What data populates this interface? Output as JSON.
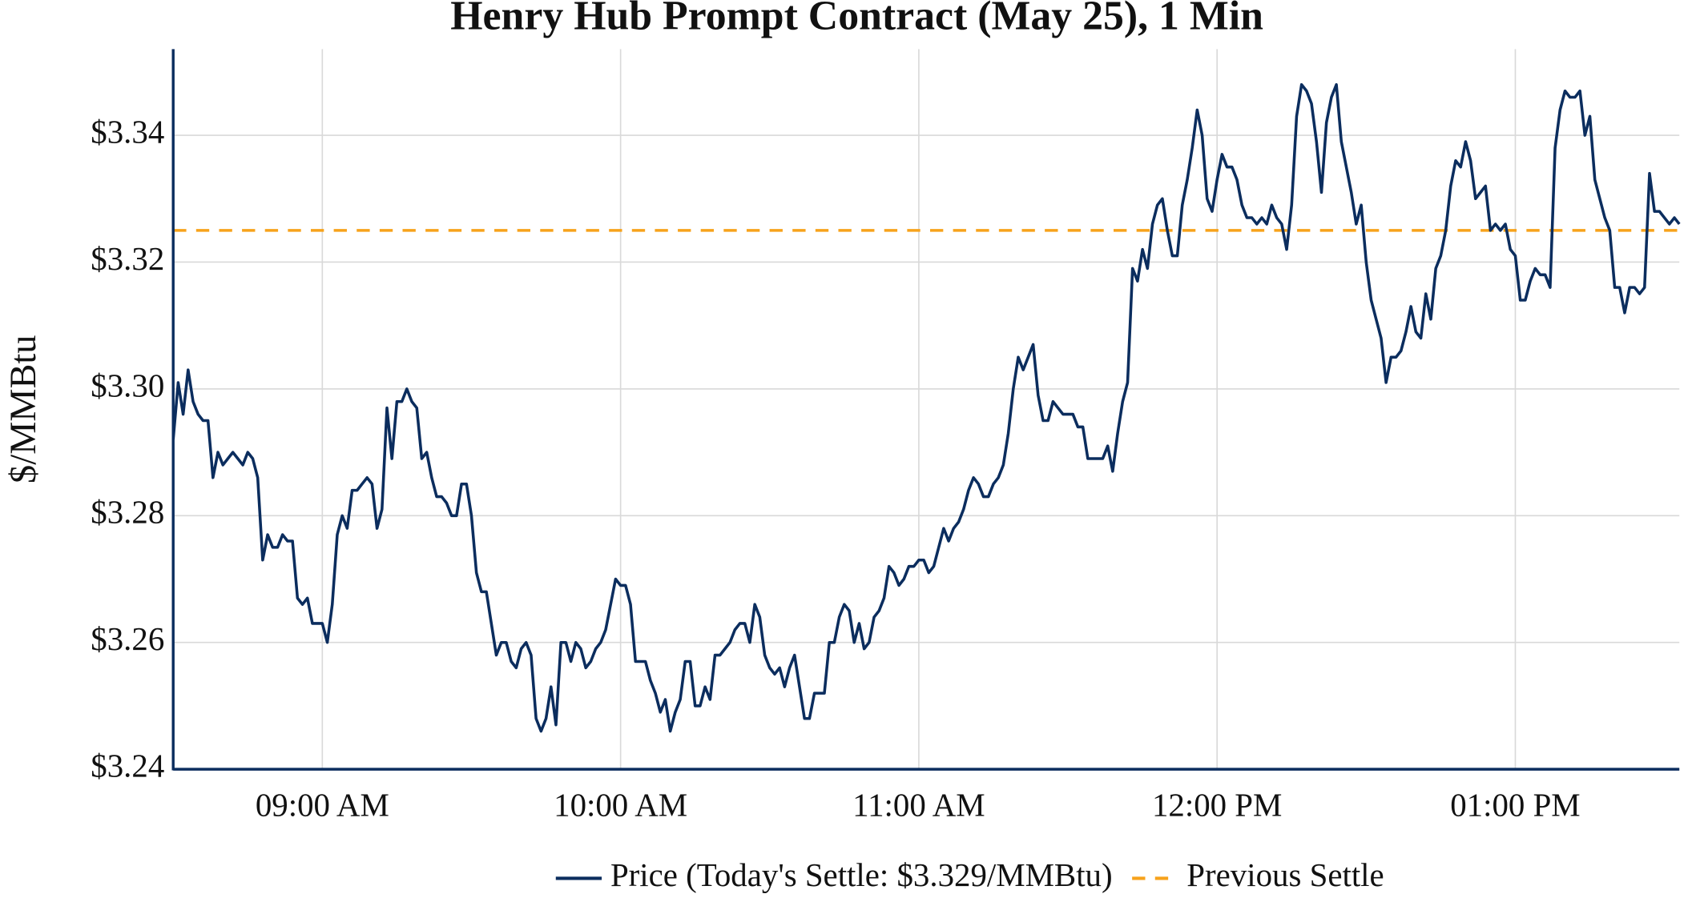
{
  "chart_data": {
    "type": "line",
    "title": "Henry Hub Prompt Contract (May 25), 1 Min",
    "y_label": "$/MMBtu",
    "x": [
      "08:30 AM",
      "08:31 AM",
      "08:32 AM",
      "08:33 AM",
      "08:34 AM",
      "08:35 AM",
      "08:36 AM",
      "08:37 AM",
      "08:38 AM",
      "08:39 AM",
      "08:40 AM",
      "08:41 AM",
      "08:42 AM",
      "08:43 AM",
      "08:44 AM",
      "08:45 AM",
      "08:46 AM",
      "08:47 AM",
      "08:48 AM",
      "08:49 AM",
      "08:50 AM",
      "08:51 AM",
      "08:52 AM",
      "08:53 AM",
      "08:54 AM",
      "08:55 AM",
      "08:56 AM",
      "08:57 AM",
      "08:58 AM",
      "08:59 AM",
      "09:00 AM",
      "09:01 AM",
      "09:02 AM",
      "09:03 AM",
      "09:04 AM",
      "09:05 AM",
      "09:06 AM",
      "09:07 AM",
      "09:08 AM",
      "09:09 AM",
      "09:10 AM",
      "09:11 AM",
      "09:12 AM",
      "09:13 AM",
      "09:14 AM",
      "09:15 AM",
      "09:16 AM",
      "09:17 AM",
      "09:18 AM",
      "09:19 AM",
      "09:20 AM",
      "09:21 AM",
      "09:22 AM",
      "09:23 AM",
      "09:24 AM",
      "09:25 AM",
      "09:26 AM",
      "09:27 AM",
      "09:28 AM",
      "09:29 AM",
      "09:30 AM",
      "09:31 AM",
      "09:32 AM",
      "09:33 AM",
      "09:34 AM",
      "09:35 AM",
      "09:36 AM",
      "09:37 AM",
      "09:38 AM",
      "09:39 AM",
      "09:40 AM",
      "09:41 AM",
      "09:42 AM",
      "09:43 AM",
      "09:44 AM",
      "09:45 AM",
      "09:46 AM",
      "09:47 AM",
      "09:48 AM",
      "09:49 AM",
      "09:50 AM",
      "09:51 AM",
      "09:52 AM",
      "09:53 AM",
      "09:54 AM",
      "09:55 AM",
      "09:56 AM",
      "09:57 AM",
      "09:58 AM",
      "09:59 AM",
      "10:00 AM",
      "10:01 AM",
      "10:02 AM",
      "10:03 AM",
      "10:04 AM",
      "10:05 AM",
      "10:06 AM",
      "10:07 AM",
      "10:08 AM",
      "10:09 AM",
      "10:10 AM",
      "10:11 AM",
      "10:12 AM",
      "10:13 AM",
      "10:14 AM",
      "10:15 AM",
      "10:16 AM",
      "10:17 AM",
      "10:18 AM",
      "10:19 AM",
      "10:20 AM",
      "10:21 AM",
      "10:22 AM",
      "10:23 AM",
      "10:24 AM",
      "10:25 AM",
      "10:26 AM",
      "10:27 AM",
      "10:28 AM",
      "10:29 AM",
      "10:30 AM",
      "10:31 AM",
      "10:32 AM",
      "10:33 AM",
      "10:34 AM",
      "10:35 AM",
      "10:36 AM",
      "10:37 AM",
      "10:38 AM",
      "10:39 AM",
      "10:40 AM",
      "10:41 AM",
      "10:42 AM",
      "10:43 AM",
      "10:44 AM",
      "10:45 AM",
      "10:46 AM",
      "10:47 AM",
      "10:48 AM",
      "10:49 AM",
      "10:50 AM",
      "10:51 AM",
      "10:52 AM",
      "10:53 AM",
      "10:54 AM",
      "10:55 AM",
      "10:56 AM",
      "10:57 AM",
      "10:58 AM",
      "10:59 AM",
      "11:00 AM",
      "11:01 AM",
      "11:02 AM",
      "11:03 AM",
      "11:04 AM",
      "11:05 AM",
      "11:06 AM",
      "11:07 AM",
      "11:08 AM",
      "11:09 AM",
      "11:10 AM",
      "11:11 AM",
      "11:12 AM",
      "11:13 AM",
      "11:14 AM",
      "11:15 AM",
      "11:16 AM",
      "11:17 AM",
      "11:18 AM",
      "11:19 AM",
      "11:20 AM",
      "11:21 AM",
      "11:22 AM",
      "11:23 AM",
      "11:24 AM",
      "11:25 AM",
      "11:26 AM",
      "11:27 AM",
      "11:28 AM",
      "11:29 AM",
      "11:30 AM",
      "11:31 AM",
      "11:32 AM",
      "11:33 AM",
      "11:34 AM",
      "11:35 AM",
      "11:36 AM",
      "11:37 AM",
      "11:38 AM",
      "11:39 AM",
      "11:40 AM",
      "11:41 AM",
      "11:42 AM",
      "11:43 AM",
      "11:44 AM",
      "11:45 AM",
      "11:46 AM",
      "11:47 AM",
      "11:48 AM",
      "11:49 AM",
      "11:50 AM",
      "11:51 AM",
      "11:52 AM",
      "11:53 AM",
      "11:54 AM",
      "11:55 AM",
      "11:56 AM",
      "11:57 AM",
      "11:58 AM",
      "11:59 AM",
      "12:00 PM",
      "12:01 PM",
      "12:02 PM",
      "12:03 PM",
      "12:04 PM",
      "12:05 PM",
      "12:06 PM",
      "12:07 PM",
      "12:08 PM",
      "12:09 PM",
      "12:10 PM",
      "12:11 PM",
      "12:12 PM",
      "12:13 PM",
      "12:14 PM",
      "12:15 PM",
      "12:16 PM",
      "12:17 PM",
      "12:18 PM",
      "12:19 PM",
      "12:20 PM",
      "12:21 PM",
      "12:22 PM",
      "12:23 PM",
      "12:24 PM",
      "12:25 PM",
      "12:26 PM",
      "12:27 PM",
      "12:28 PM",
      "12:29 PM",
      "12:30 PM",
      "12:31 PM",
      "12:32 PM",
      "12:33 PM",
      "12:34 PM",
      "12:35 PM",
      "12:36 PM",
      "12:37 PM",
      "12:38 PM",
      "12:39 PM",
      "12:40 PM",
      "12:41 PM",
      "12:42 PM",
      "12:43 PM",
      "12:44 PM",
      "12:45 PM",
      "12:46 PM",
      "12:47 PM",
      "12:48 PM",
      "12:49 PM",
      "12:50 PM",
      "12:51 PM",
      "12:52 PM",
      "12:53 PM",
      "12:54 PM",
      "12:55 PM",
      "12:56 PM",
      "12:57 PM",
      "12:58 PM",
      "12:59 PM",
      "01:00 PM",
      "01:01 PM",
      "01:02 PM",
      "01:03 PM",
      "01:04 PM",
      "01:05 PM",
      "01:06 PM",
      "01:07 PM",
      "01:08 PM",
      "01:09 PM",
      "01:10 PM",
      "01:11 PM",
      "01:12 PM",
      "01:13 PM",
      "01:14 PM",
      "01:15 PM",
      "01:16 PM",
      "01:17 PM",
      "01:18 PM",
      "01:19 PM",
      "01:20 PM",
      "01:21 PM",
      "01:22 PM",
      "01:23 PM",
      "01:24 PM",
      "01:25 PM",
      "01:26 PM",
      "01:27 PM",
      "01:28 PM",
      "01:29 PM",
      "01:30 PM",
      "01:31 PM",
      "01:32 PM",
      "01:33 PM"
    ],
    "series": [
      {
        "name": "Price (Today's Settle: $3.329/MMBtu)",
        "color": "#0b2d5e",
        "values": [
          3.292,
          3.301,
          3.296,
          3.303,
          3.298,
          3.296,
          3.295,
          3.295,
          3.286,
          3.29,
          3.288,
          3.289,
          3.29,
          3.289,
          3.288,
          3.29,
          3.289,
          3.286,
          3.273,
          3.277,
          3.275,
          3.275,
          3.277,
          3.276,
          3.276,
          3.267,
          3.266,
          3.267,
          3.263,
          3.263,
          3.263,
          3.26,
          3.266,
          3.277,
          3.28,
          3.278,
          3.284,
          3.284,
          3.285,
          3.286,
          3.285,
          3.278,
          3.281,
          3.297,
          3.289,
          3.298,
          3.298,
          3.3,
          3.298,
          3.297,
          3.289,
          3.29,
          3.286,
          3.283,
          3.283,
          3.282,
          3.28,
          3.28,
          3.285,
          3.285,
          3.28,
          3.271,
          3.268,
          3.268,
          3.263,
          3.258,
          3.26,
          3.26,
          3.257,
          3.256,
          3.259,
          3.26,
          3.258,
          3.248,
          3.246,
          3.248,
          3.253,
          3.247,
          3.26,
          3.26,
          3.257,
          3.26,
          3.259,
          3.256,
          3.257,
          3.259,
          3.26,
          3.262,
          3.266,
          3.27,
          3.269,
          3.269,
          3.266,
          3.257,
          3.257,
          3.257,
          3.254,
          3.252,
          3.249,
          3.251,
          3.246,
          3.249,
          3.251,
          3.257,
          3.257,
          3.25,
          3.25,
          3.253,
          3.251,
          3.258,
          3.258,
          3.259,
          3.26,
          3.262,
          3.263,
          3.263,
          3.26,
          3.266,
          3.264,
          3.258,
          3.256,
          3.255,
          3.256,
          3.253,
          3.256,
          3.258,
          3.253,
          3.248,
          3.248,
          3.252,
          3.252,
          3.252,
          3.26,
          3.26,
          3.264,
          3.266,
          3.265,
          3.26,
          3.263,
          3.259,
          3.26,
          3.264,
          3.265,
          3.267,
          3.272,
          3.271,
          3.269,
          3.27,
          3.272,
          3.272,
          3.273,
          3.273,
          3.271,
          3.272,
          3.275,
          3.278,
          3.276,
          3.278,
          3.279,
          3.281,
          3.284,
          3.286,
          3.285,
          3.283,
          3.283,
          3.285,
          3.286,
          3.288,
          3.293,
          3.3,
          3.305,
          3.303,
          3.305,
          3.307,
          3.299,
          3.295,
          3.295,
          3.298,
          3.297,
          3.296,
          3.296,
          3.296,
          3.294,
          3.294,
          3.289,
          3.289,
          3.289,
          3.289,
          3.291,
          3.287,
          3.293,
          3.298,
          3.301,
          3.319,
          3.317,
          3.322,
          3.319,
          3.326,
          3.329,
          3.33,
          3.325,
          3.321,
          3.321,
          3.329,
          3.333,
          3.338,
          3.344,
          3.34,
          3.33,
          3.328,
          3.333,
          3.337,
          3.335,
          3.335,
          3.333,
          3.329,
          3.327,
          3.327,
          3.326,
          3.327,
          3.326,
          3.329,
          3.327,
          3.326,
          3.322,
          3.329,
          3.343,
          3.348,
          3.347,
          3.345,
          3.339,
          3.331,
          3.342,
          3.346,
          3.348,
          3.339,
          3.335,
          3.331,
          3.326,
          3.329,
          3.32,
          3.314,
          3.311,
          3.308,
          3.301,
          3.305,
          3.305,
          3.306,
          3.309,
          3.313,
          3.309,
          3.308,
          3.315,
          3.311,
          3.319,
          3.321,
          3.325,
          3.332,
          3.336,
          3.335,
          3.339,
          3.336,
          3.33,
          3.331,
          3.332,
          3.325,
          3.326,
          3.325,
          3.326,
          3.322,
          3.321,
          3.314,
          3.314,
          3.317,
          3.319,
          3.318,
          3.318,
          3.316,
          3.338,
          3.344,
          3.347,
          3.346,
          3.346,
          3.347,
          3.34,
          3.343,
          3.333,
          3.33,
          3.327,
          3.325,
          3.316,
          3.316,
          3.312,
          3.316,
          3.316,
          3.315,
          3.316,
          3.334,
          3.328,
          3.328,
          3.327,
          3.326,
          3.327,
          3.326
        ]
      }
    ],
    "hline": {
      "name": "Previous Settle",
      "value": 3.325,
      "color": "#f7a21b"
    },
    "xlim": [
      "08:30 AM",
      "01:33 PM"
    ],
    "xticks": [
      "09:00 AM",
      "10:00 AM",
      "11:00 AM",
      "12:00 PM",
      "01:00 PM"
    ],
    "ylim": [
      3.24,
      3.3536
    ],
    "yticks": [
      {
        "value": 3.24,
        "label": "$3.24"
      },
      {
        "value": 3.26,
        "label": "$3.26"
      },
      {
        "value": 3.28,
        "label": "$3.28"
      },
      {
        "value": 3.3,
        "label": "$3.30"
      },
      {
        "value": 3.32,
        "label": "$3.32"
      },
      {
        "value": 3.34,
        "label": "$3.34"
      }
    ],
    "grid": true,
    "legend": "bottom"
  }
}
